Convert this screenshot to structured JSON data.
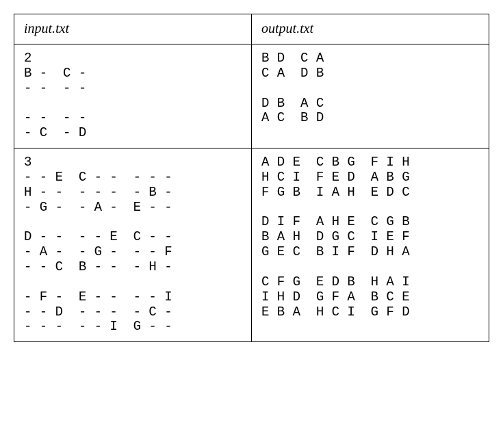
{
  "table": {
    "border_color": "#000000",
    "background": "#ffffff",
    "header_font_style": "italic",
    "header_fontsize": 20,
    "code_font_family": "Courier New, monospace",
    "code_fontsize": 19,
    "columns": [
      "input.txt",
      "output.txt"
    ],
    "rows": [
      {
        "input": "2\nB -  C -\n- -  - -\n\n- -  - -\n- C  - D",
        "output": "B D  C A\nC A  D B\n\nD B  A C\nA C  B D"
      },
      {
        "input": "3\n- - E  C - -  - - -\nH - -  - - -  - B -\n- G -  - A -  E - -\n\nD - -  - - E  C - -\n- A -  - G -  - - F\n- - C  B - -  - H -\n\n- F -  E - -  - - I\n- - D  - - -  - C -\n- - -  - - I  G - -",
        "output": "A D E  C B G  F I H\nH C I  F E D  A B G\nF G B  I A H  E D C\n\nD I F  A H E  C G B\nB A H  D G C  I E F\nG E C  B I F  D H A\n\nC F G  E D B  H A I\nI H D  G F A  B C E\nE B A  H C I  G F D"
      }
    ]
  }
}
